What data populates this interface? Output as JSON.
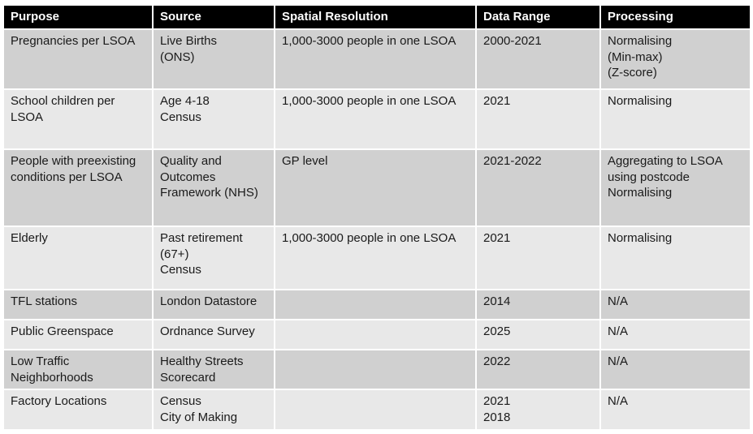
{
  "table": {
    "headers": [
      "Purpose",
      "Source",
      "Spatial Resolution",
      "Data Range",
      "Processing"
    ],
    "rows": [
      {
        "purpose": "Pregnancies per LSOA",
        "source": "Live Births\n(ONS)",
        "spatial_resolution": "1,000-3000 people in one LSOA",
        "data_range": "2000-2021",
        "processing": "Normalising\n(Min-max)\n(Z-score)"
      },
      {
        "purpose": "School children per\nLSOA",
        "source": "Age 4-18\nCensus",
        "spatial_resolution": "1,000-3000 people in one LSOA",
        "data_range": "2021",
        "processing": "Normalising"
      },
      {
        "purpose": "People with preexisting\nconditions per LSOA",
        "source": "Quality and\nOutcomes\nFramework (NHS)",
        "spatial_resolution": "GP level",
        "data_range": "2021-2022",
        "processing": "Aggregating to LSOA\nusing postcode\nNormalising"
      },
      {
        "purpose": "Elderly",
        "source": "Past retirement\n(67+)\nCensus",
        "spatial_resolution": "1,000-3000 people in one LSOA",
        "data_range": "2021",
        "processing": "Normalising"
      },
      {
        "purpose": "TFL stations",
        "source": "London Datastore",
        "spatial_resolution": "",
        "data_range": "2014",
        "processing": "N/A"
      },
      {
        "purpose": "Public Greenspace",
        "source": "Ordnance Survey",
        "spatial_resolution": "",
        "data_range": "2025",
        "processing": "N/A"
      },
      {
        "purpose": "Low Traffic\nNeighborhoods",
        "source": "Healthy Streets\nScorecard",
        "spatial_resolution": "",
        "data_range": "2022",
        "processing": "N/A"
      },
      {
        "purpose": "Factory Locations",
        "source": "Census\nCity of Making",
        "spatial_resolution": "",
        "data_range": "2021\n2018",
        "processing": "N/A"
      }
    ]
  }
}
